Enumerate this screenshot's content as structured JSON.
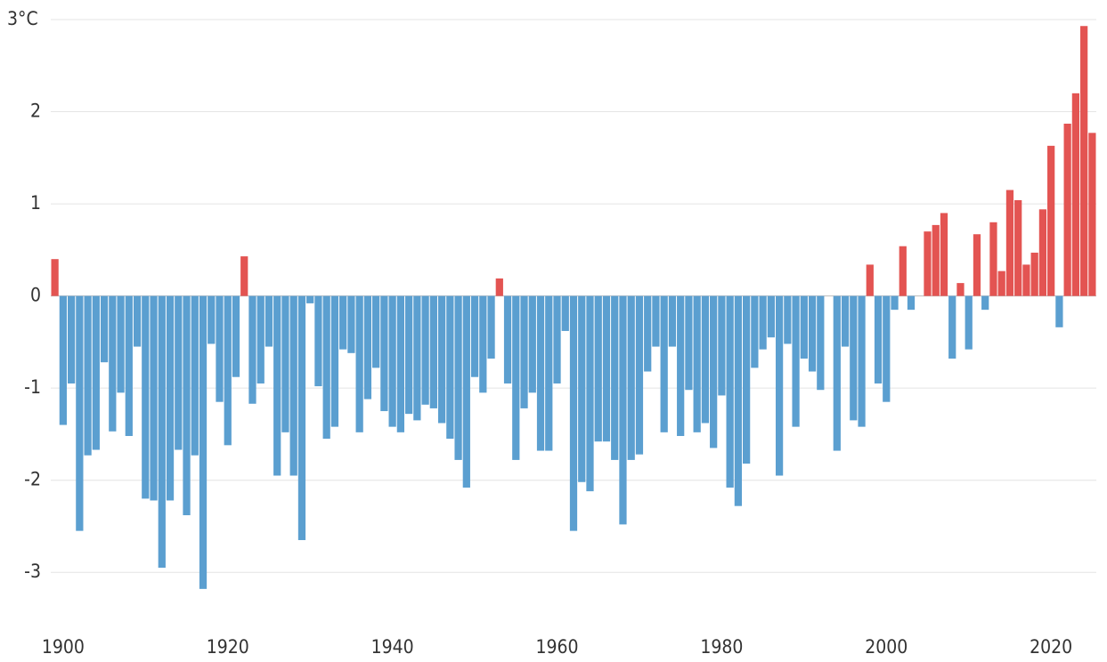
{
  "chart_data": {
    "type": "bar",
    "x": [
      1899,
      1900,
      1901,
      1902,
      1903,
      1904,
      1905,
      1906,
      1907,
      1908,
      1909,
      1910,
      1911,
      1912,
      1913,
      1914,
      1915,
      1916,
      1917,
      1918,
      1919,
      1920,
      1921,
      1922,
      1923,
      1924,
      1925,
      1926,
      1927,
      1928,
      1929,
      1930,
      1931,
      1932,
      1933,
      1934,
      1935,
      1936,
      1937,
      1938,
      1939,
      1940,
      1941,
      1942,
      1943,
      1944,
      1945,
      1946,
      1947,
      1948,
      1949,
      1950,
      1951,
      1952,
      1953,
      1954,
      1955,
      1956,
      1957,
      1958,
      1959,
      1960,
      1961,
      1962,
      1963,
      1964,
      1965,
      1966,
      1967,
      1968,
      1969,
      1970,
      1971,
      1972,
      1973,
      1974,
      1975,
      1976,
      1977,
      1978,
      1979,
      1980,
      1981,
      1982,
      1983,
      1984,
      1985,
      1986,
      1987,
      1988,
      1989,
      1990,
      1991,
      1992,
      1993,
      1994,
      1995,
      1996,
      1997,
      1998,
      1999,
      2000,
      2001,
      2002,
      2003,
      2004,
      2005,
      2006,
      2007,
      2008,
      2009,
      2010,
      2011,
      2012,
      2013,
      2014,
      2015,
      2016,
      2017,
      2018,
      2019,
      2020,
      2021,
      2022,
      2023,
      2024,
      2025
    ],
    "values": [
      0.4,
      -1.4,
      -0.95,
      -2.55,
      -1.73,
      -1.67,
      -0.72,
      -1.47,
      -1.05,
      -1.52,
      -0.55,
      -2.2,
      -2.22,
      -2.95,
      -2.22,
      -1.67,
      -2.38,
      -1.73,
      -3.18,
      -0.52,
      -1.15,
      -1.62,
      -0.88,
      0.43,
      -1.17,
      -0.95,
      -0.55,
      -1.95,
      -1.48,
      -1.95,
      -2.65,
      -0.08,
      -0.98,
      -1.55,
      -1.42,
      -0.58,
      -0.62,
      -1.48,
      -1.12,
      -0.78,
      -1.25,
      -1.42,
      -1.48,
      -1.28,
      -1.35,
      -1.18,
      -1.22,
      -1.38,
      -1.55,
      -1.78,
      -2.08,
      -0.88,
      -1.05,
      -0.68,
      0.19,
      -0.95,
      -1.78,
      -1.22,
      -1.05,
      -1.68,
      -1.68,
      -0.95,
      -0.38,
      -2.55,
      -2.02,
      -2.12,
      -1.58,
      -1.58,
      -1.78,
      -2.48,
      -1.78,
      -1.72,
      -0.82,
      -0.55,
      -1.48,
      -0.55,
      -1.52,
      -1.02,
      -1.48,
      -1.38,
      -1.65,
      -1.08,
      -2.08,
      -2.28,
      -1.82,
      -0.78,
      -0.58,
      -0.45,
      -1.95,
      -0.52,
      -1.42,
      -0.68,
      -0.82,
      -1.02,
      0,
      -1.68,
      -0.55,
      -1.35,
      -1.42,
      0.34,
      -0.95,
      -1.15,
      -0.15,
      0.54,
      -0.15,
      0,
      0.7,
      0.77,
      0.9,
      -0.68,
      0.14,
      -0.58,
      0.67,
      -0.15,
      0.8,
      0.27,
      1.15,
      1.04,
      0.34,
      0.47,
      0.94,
      1.63,
      -0.34,
      1.87,
      2.2,
      2.93,
      1.77
    ],
    "positive_color": "#e35452",
    "negative_color": "#5b9fd0",
    "xlim": [
      1898.5,
      2025.5
    ],
    "xticks": [
      1900,
      1920,
      1940,
      1960,
      1980,
      2000,
      2020
    ],
    "ylim": [
      -3.5,
      3
    ],
    "yticks": [
      {
        "value": 3,
        "label": "3°C"
      },
      2,
      1,
      0,
      -1,
      -2,
      -3
    ],
    "grid": true
  }
}
